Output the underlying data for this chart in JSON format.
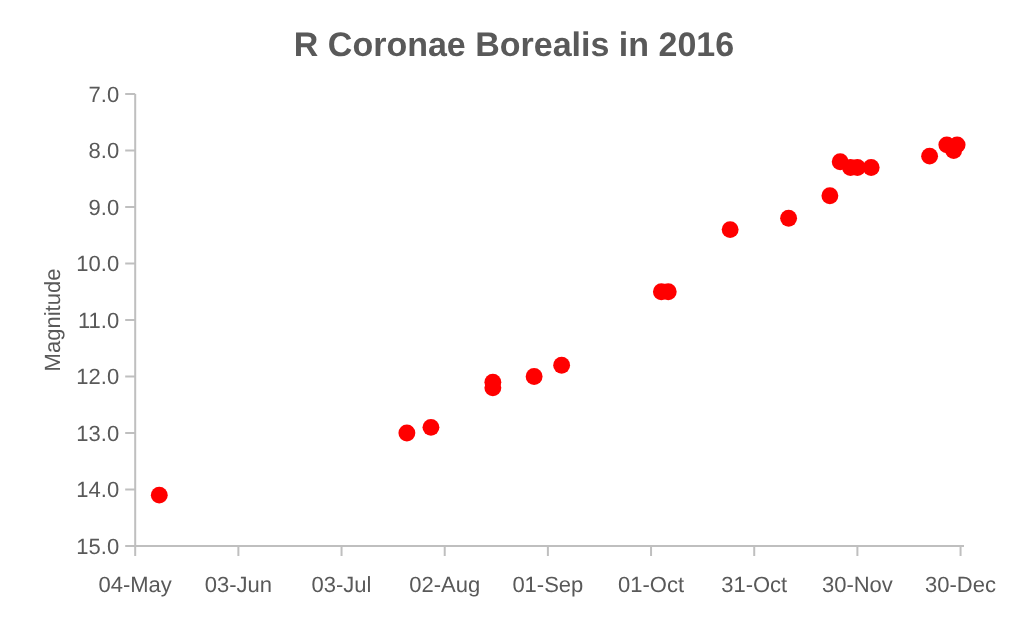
{
  "chart_data": {
    "type": "scatter",
    "title": "R Coronae Borealis in 2016",
    "ylabel": "Magnitude",
    "x": [
      "2016-05-11",
      "2016-07-22",
      "2016-07-29",
      "2016-08-16",
      "2016-08-16",
      "2016-08-28",
      "2016-09-05",
      "2016-10-04",
      "2016-10-06",
      "2016-10-24",
      "2016-11-10",
      "2016-11-22",
      "2016-11-25",
      "2016-11-28",
      "2016-11-30",
      "2016-12-04",
      "2016-12-21",
      "2016-12-26",
      "2016-12-28",
      "2016-12-29"
    ],
    "series": [
      {
        "color": "#ff0000",
        "values": [
          14.1,
          13.0,
          12.9,
          12.2,
          12.1,
          12.0,
          11.8,
          10.5,
          10.5,
          9.4,
          9.2,
          8.8,
          8.2,
          8.3,
          8.3,
          8.3,
          8.1,
          7.9,
          8.0,
          7.9
        ]
      }
    ],
    "xlim": [
      "2016-05-04",
      "2016-12-31"
    ],
    "xticks": [
      {
        "value": "2016-05-04",
        "label": "04-May"
      },
      {
        "value": "2016-06-03",
        "label": "03-Jun"
      },
      {
        "value": "2016-07-03",
        "label": "03-Jul"
      },
      {
        "value": "2016-08-02",
        "label": "02-Aug"
      },
      {
        "value": "2016-09-01",
        "label": "01-Sep"
      },
      {
        "value": "2016-10-01",
        "label": "01-Oct"
      },
      {
        "value": "2016-10-31",
        "label": "31-Oct"
      },
      {
        "value": "2016-11-30",
        "label": "30-Nov"
      },
      {
        "value": "2016-12-30",
        "label": "30-Dec"
      }
    ],
    "ylim": [
      15,
      7
    ],
    "yticks": [
      {
        "value": 7,
        "label": "7.0"
      },
      {
        "value": 8,
        "label": "8.0"
      },
      {
        "value": 9,
        "label": "9.0"
      },
      {
        "value": 10,
        "label": "10.0"
      },
      {
        "value": 11,
        "label": "11.0"
      },
      {
        "value": 12,
        "label": "12.0"
      },
      {
        "value": 13,
        "label": "13.0"
      },
      {
        "value": 14,
        "label": "14.0"
      },
      {
        "value": 15,
        "label": "15.0"
      }
    ],
    "grid": false,
    "marker": "circle"
  }
}
